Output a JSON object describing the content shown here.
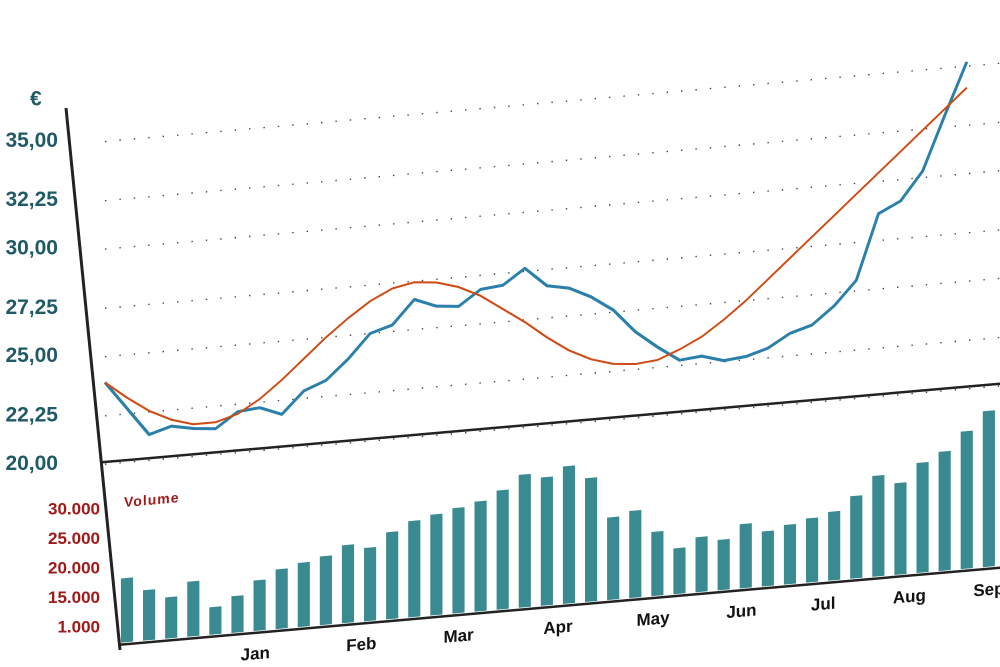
{
  "chart_data": [
    {
      "type": "line",
      "y_label": "€",
      "x": [
        0,
        1,
        2,
        3,
        4,
        5,
        6,
        7,
        8,
        9,
        10,
        11,
        12,
        13,
        14,
        15,
        16,
        17,
        18,
        19,
        20,
        21,
        22,
        23,
        24,
        25,
        26,
        27,
        28,
        29,
        30,
        31,
        32,
        33,
        34,
        35,
        36,
        37,
        38,
        39
      ],
      "series": [
        {
          "color": "#2a80aa",
          "values": [
            23.8,
            22.5,
            21.2,
            21.5,
            21.3,
            21.2,
            21.9,
            22.0,
            21.6,
            22.6,
            23.0,
            23.9,
            25.0,
            25.3,
            26.4,
            26.0,
            25.9,
            26.6,
            26.7,
            27.4,
            26.5,
            26.3,
            25.8,
            25.1,
            24.0,
            23.2,
            22.5,
            22.6,
            22.3,
            22.4,
            22.7,
            23.3,
            23.6,
            24.4,
            25.5,
            28.5,
            29.0,
            30.3,
            32.8,
            35.2
          ]
        },
        {
          "color": "#d04a14",
          "values": [
            23.8,
            23.0,
            22.3,
            21.8,
            21.5,
            21.5,
            21.8,
            22.4,
            23.2,
            24.1,
            25.0,
            25.8,
            26.5,
            27.0,
            27.2,
            27.1,
            26.8,
            26.3,
            25.6,
            24.9,
            24.1,
            23.4,
            22.9,
            22.6,
            22.5,
            22.6,
            23.0,
            23.5,
            24.2,
            25.0,
            25.9,
            26.8,
            27.7,
            28.6,
            29.5,
            30.4,
            31.3,
            32.2,
            33.1,
            34.0
          ]
        }
      ],
      "xlim": [
        0,
        40.5
      ],
      "xticks": [
        {
          "value": 6.8,
          "label": "Jan"
        },
        {
          "value": 11.6,
          "label": "Feb"
        },
        {
          "value": 16,
          "label": "Mar"
        },
        {
          "value": 20.5,
          "label": "Apr"
        },
        {
          "value": 24.8,
          "label": "May"
        },
        {
          "value": 28.8,
          "label": "Jun"
        },
        {
          "value": 32.5,
          "label": "Jul"
        },
        {
          "value": 36.4,
          "label": "Aug"
        },
        {
          "value": 40,
          "label": "Sep"
        }
      ],
      "ylim": [
        19.5,
        36
      ],
      "yticks": [
        {
          "value": 35,
          "label": "35,00"
        },
        {
          "value": 32.25,
          "label": "32,25"
        },
        {
          "value": 30,
          "label": "30,00"
        },
        {
          "value": 27.25,
          "label": "27,25"
        },
        {
          "value": 25,
          "label": "25,00"
        },
        {
          "value": 22.25,
          "label": "22,25"
        },
        {
          "value": 20,
          "label": "20,00"
        }
      ],
      "grid": true
    },
    {
      "type": "bar",
      "title": "Volume",
      "color": "#3a8a92",
      "x": [
        0,
        1,
        2,
        3,
        4,
        5,
        6,
        7,
        8,
        9,
        10,
        11,
        12,
        13,
        14,
        15,
        16,
        17,
        18,
        19,
        20,
        21,
        22,
        23,
        24,
        25,
        26,
        27,
        28,
        29,
        30,
        31,
        32,
        33,
        34,
        35,
        36,
        37,
        38,
        39
      ],
      "values": [
        14000,
        11000,
        9000,
        12000,
        6000,
        8000,
        11000,
        13000,
        14000,
        15000,
        17000,
        16000,
        19000,
        21000,
        22000,
        23000,
        24000,
        26000,
        29000,
        28000,
        30000,
        27000,
        18000,
        19000,
        14000,
        10000,
        12000,
        11000,
        14000,
        12000,
        13000,
        14000,
        15000,
        18000,
        22000,
        20000,
        24000,
        26000,
        30000,
        34000
      ],
      "xlim": [
        0,
        40.5
      ],
      "ylim": [
        0,
        36000
      ],
      "yticks": [
        {
          "value": 30000,
          "label": "30.000"
        },
        {
          "value": 25000,
          "label": "25.000"
        },
        {
          "value": 20000,
          "label": "20.000"
        },
        {
          "value": 15000,
          "label": "15.000"
        },
        {
          "value": 1000,
          "label": "1.000"
        }
      ]
    }
  ]
}
